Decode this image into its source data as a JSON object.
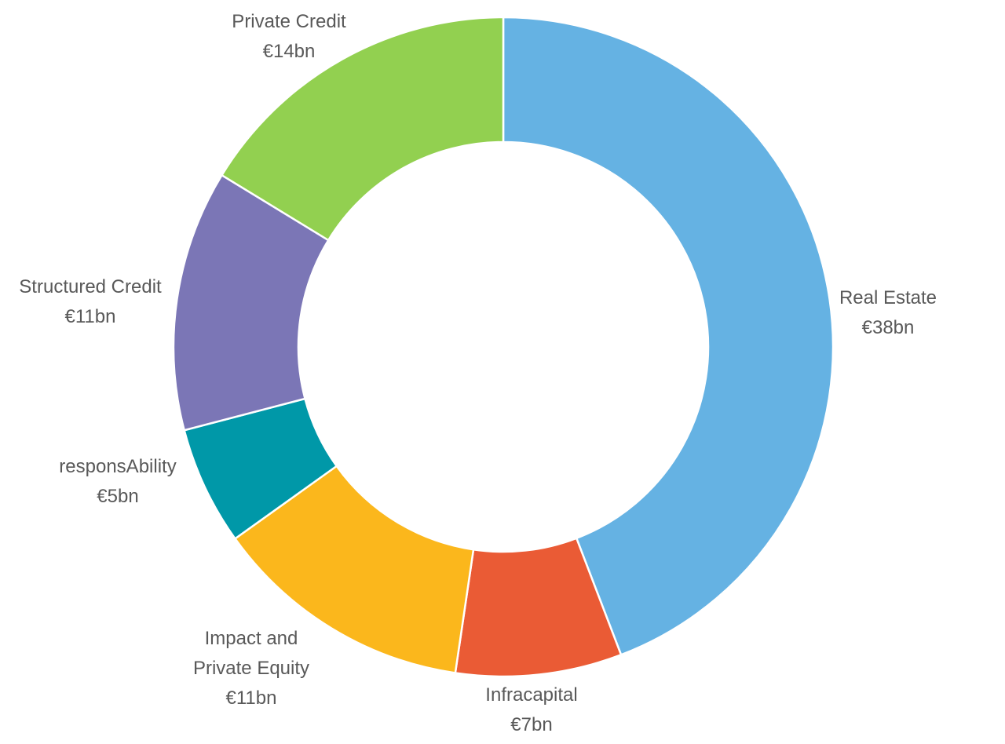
{
  "chart_data": {
    "type": "pie",
    "variant": "donut",
    "unit": "€bn",
    "categories": [
      "Real Estate",
      "Infracapital",
      "Impact and Private Equity",
      "responsAbility",
      "Structured Credit",
      "Private Credit"
    ],
    "values": [
      38,
      7,
      11,
      5,
      11,
      14
    ],
    "data_labels": [
      "€38bn",
      "€7bn",
      "€11bn",
      "€5bn",
      "€11bn",
      "€14bn"
    ],
    "colors": [
      "#65B2E3",
      "#EA5B35",
      "#FBB71C",
      "#0098A8",
      "#7B76B6",
      "#92D050"
    ],
    "legend": "none",
    "start": "top, clockwise"
  }
}
